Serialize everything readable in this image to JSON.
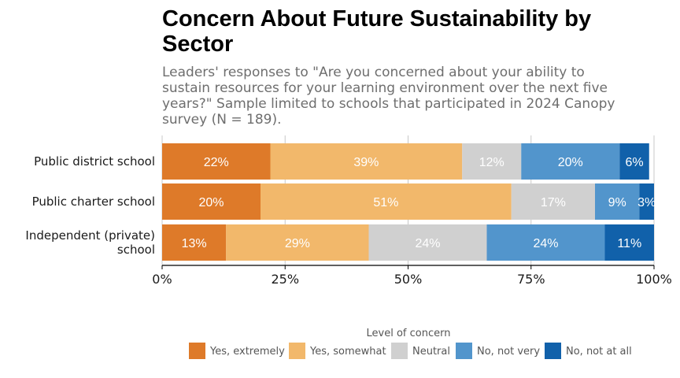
{
  "chart_data": {
    "type": "bar",
    "orientation": "horizontal",
    "stacked": true,
    "title": "Concern About Future Sustainability by Sector",
    "subtitle": "Leaders' responses to \"Are you concerned about your ability to sustain resources for your learning environment over the next five years?\" Sample limited to schools that participated in 2024 Canopy survey (N = 189).",
    "categories": [
      "Public district school",
      "Public charter school",
      "Independent (private) school"
    ],
    "series": [
      {
        "name": "Yes, extremely",
        "color": "#DE7A29",
        "values": [
          22,
          20,
          13
        ],
        "labels": [
          "22%",
          "20%",
          "13%"
        ]
      },
      {
        "name": "Yes, somewhat",
        "color": "#F2B86B",
        "values": [
          39,
          51,
          29
        ],
        "labels": [
          "39%",
          "51%",
          "29%"
        ]
      },
      {
        "name": "Neutral",
        "color": "#D0D0D0",
        "values": [
          12,
          17,
          24
        ],
        "labels": [
          "12%",
          "17%",
          "24%"
        ]
      },
      {
        "name": "No, not very",
        "color": "#5295CC",
        "values": [
          20,
          9,
          24
        ],
        "labels": [
          "20%",
          "9%",
          "24%"
        ]
      },
      {
        "name": "No, not at all",
        "color": "#1161AA",
        "values": [
          6,
          3,
          11
        ],
        "labels": [
          "6%",
          "3%",
          "11%"
        ]
      }
    ],
    "xlim": [
      0,
      100
    ],
    "xticks": [
      0,
      25,
      50,
      75,
      100
    ],
    "xtick_labels": [
      "0%",
      "25%",
      "50%",
      "75%",
      "100%"
    ],
    "grid": true,
    "legend": {
      "title": "Level of concern",
      "placement": "bottom"
    }
  }
}
